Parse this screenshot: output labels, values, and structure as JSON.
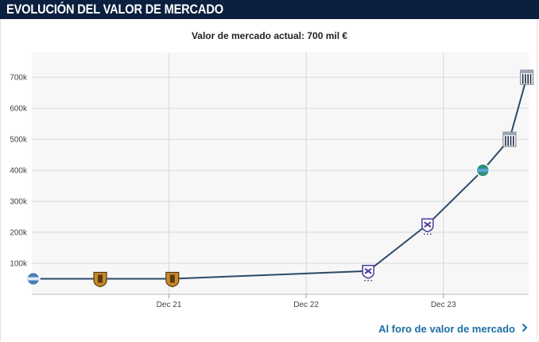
{
  "header": {
    "title": "EVOLUCIÓN DEL VALOR DE MERCADO"
  },
  "subtitle": "Valor de mercado actual: 700 mil €",
  "footer_link": {
    "label": "Al foro de valor de mercado",
    "icon": "chevron-right-icon"
  },
  "colors": {
    "header_bg": "#0b1f3f",
    "line": "#2b4a6a",
    "plot_bg": "#f7f7f7",
    "grid": "#d8d8d8",
    "link": "#1a6fa6"
  },
  "chart_data": {
    "type": "line",
    "title": "Valor de mercado actual: 700 mil €",
    "xlabel": "",
    "ylabel": "",
    "x_ticks": [
      "Dec 21",
      "Dec 22",
      "Dec 23"
    ],
    "x_tick_dates": [
      "2021-12-01",
      "2022-12-01",
      "2023-12-01"
    ],
    "xlim": [
      "2020-12-01",
      "2024-07-15"
    ],
    "y_ticks": [
      "100k",
      "200k",
      "300k",
      "400k",
      "500k",
      "600k",
      "700k"
    ],
    "y_tick_values": [
      100000,
      200000,
      300000,
      400000,
      500000,
      600000,
      700000
    ],
    "ylim": [
      0,
      780000
    ],
    "grid": true,
    "points": [
      {
        "date": "2020-12-05",
        "value": 50000,
        "badge": "club-crest-blue"
      },
      {
        "date": "2021-06-01",
        "value": 50000,
        "badge": "club-crest-orange"
      },
      {
        "date": "2021-12-10",
        "value": 50000,
        "badge": "club-crest-orange"
      },
      {
        "date": "2023-05-15",
        "value": 75000,
        "badge": "club-crest-purple"
      },
      {
        "date": "2023-10-20",
        "value": 225000,
        "badge": "club-crest-purple"
      },
      {
        "date": "2024-03-15",
        "value": 400000,
        "badge": "club-crest-green"
      },
      {
        "date": "2024-05-25",
        "value": 500000,
        "badge": "club-crest-striped"
      },
      {
        "date": "2024-07-10",
        "value": 700000,
        "badge": "club-crest-striped"
      }
    ]
  }
}
